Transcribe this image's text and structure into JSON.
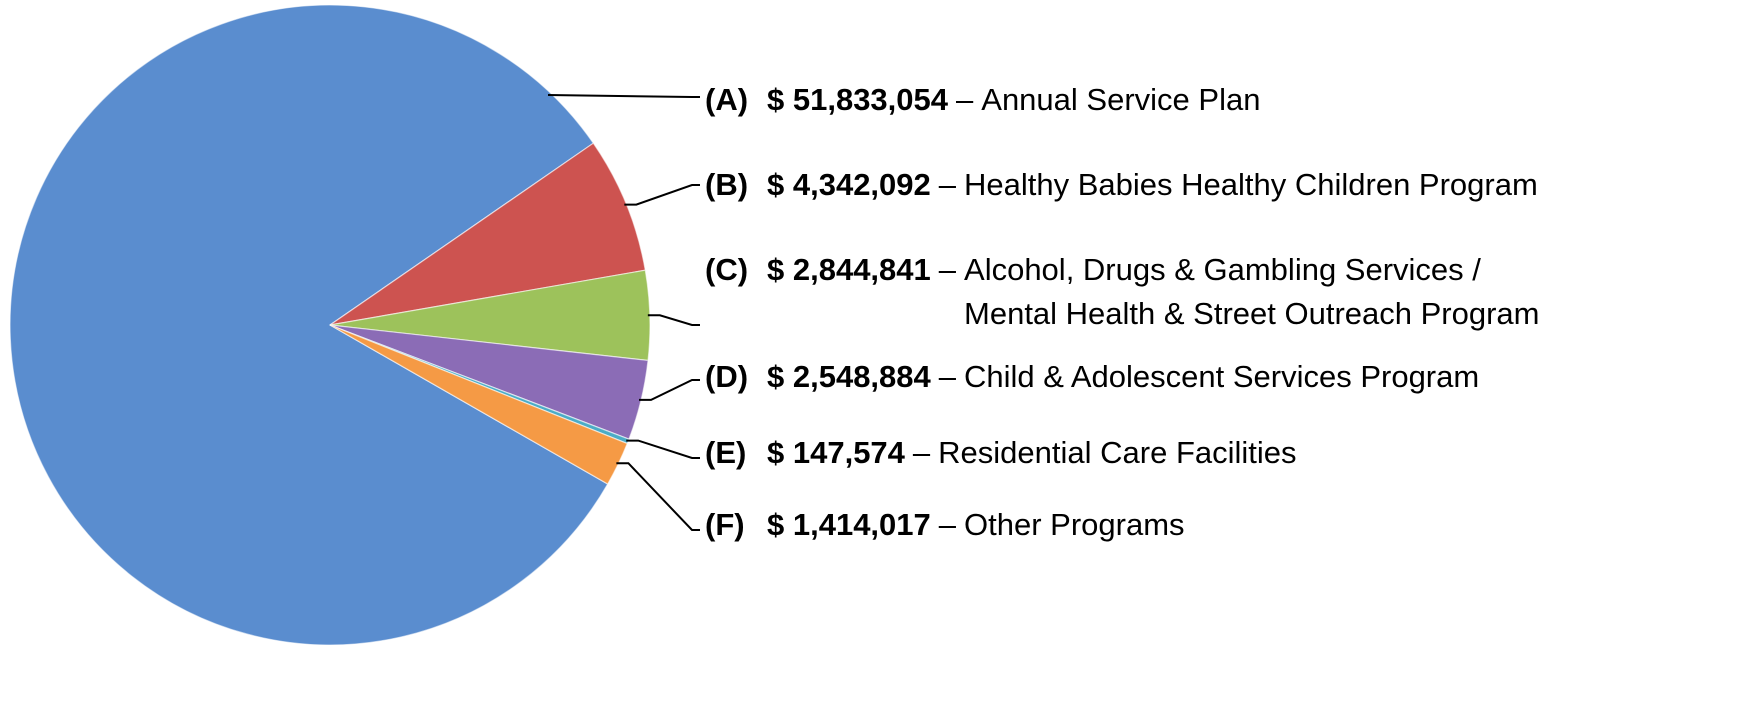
{
  "chart_data": {
    "type": "pie",
    "letters": [
      "(A)",
      "(B)",
      "(C)",
      "(D)",
      "(E)",
      "(F)"
    ],
    "separator": "–",
    "categories": [
      "Annual Service Plan",
      "Healthy Babies Healthy Children Program",
      "Alcohol, Drugs & Gambling Services / Mental Health & Street Outreach Program",
      "Child & Adolescent Services Program",
      "Residential Care Facilities",
      "Other Programs"
    ],
    "values": [
      51833054,
      4342092,
      2844841,
      2548884,
      147574,
      1414017
    ],
    "value_labels": [
      "$ 51,833,054",
      "$ 4,342,092",
      "$ 2,844,841",
      "$ 2,548,884",
      "$ 147,574",
      "$ 1,414,017"
    ],
    "colors": [
      "#5a8dcf",
      "#cd5350",
      "#9dc25b",
      "#8b6cb6",
      "#4bacc6",
      "#f59a45"
    ]
  }
}
